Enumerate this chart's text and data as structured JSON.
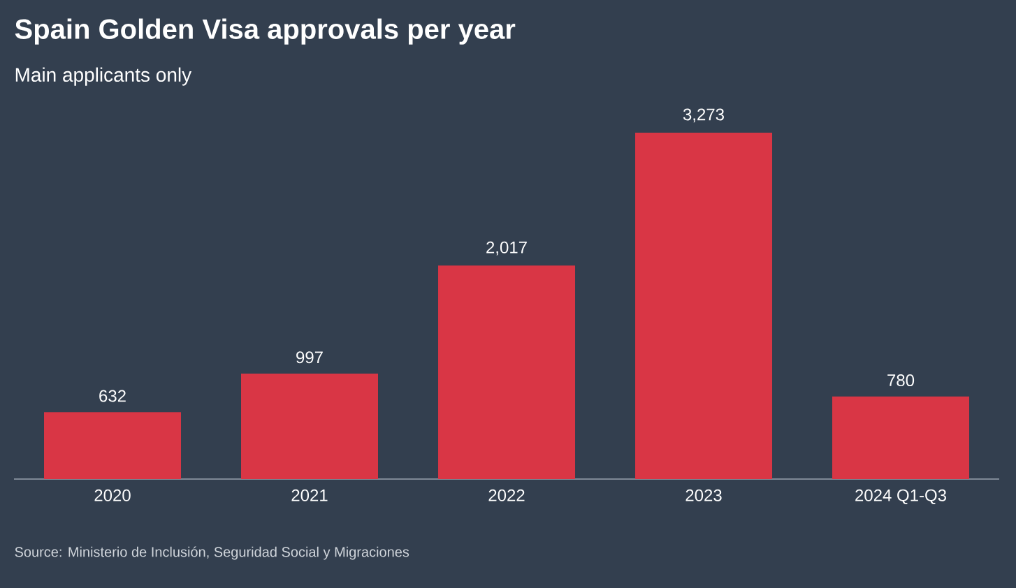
{
  "chart_data": {
    "type": "bar",
    "title": "Spain Golden Visa approvals per year",
    "subtitle": "Main applicants only",
    "categories": [
      "2020",
      "2021",
      "2022",
      "2023",
      "2024 Q1-Q3"
    ],
    "values": [
      632,
      997,
      2017,
      3273,
      780
    ],
    "color": "#d93645",
    "value_labels": [
      "632",
      "997",
      "2,017",
      "3,273",
      "780"
    ],
    "annotations": [
      "Source: Ministerio de Inclusión, Seguridad Social y Migraciones"
    ]
  }
}
